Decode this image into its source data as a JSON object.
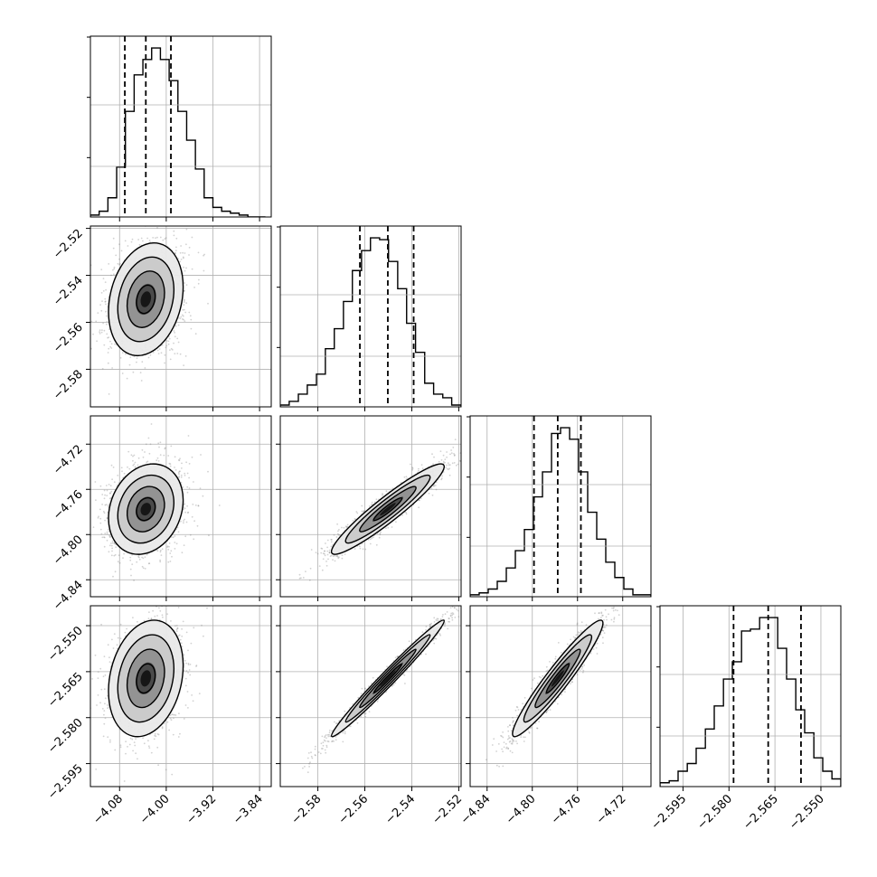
{
  "chart_data": {
    "type": "scatter",
    "variant": "corner-plot",
    "parameters": [
      "",
      "",
      "",
      ""
    ],
    "colors": {
      "line": "#000000",
      "grid": "#b0b0b0",
      "scatter": "#7f7f7f",
      "background": "#ffffff"
    },
    "grid": true,
    "quantile_lines": "dashed",
    "ranges": [
      [
        -4.13,
        -3.82
      ],
      [
        -2.596,
        -2.519
      ],
      [
        -4.855,
        -4.695
      ],
      [
        -2.6025,
        -2.5435
      ]
    ],
    "ticks": [
      {
        "values": [
          -4.08,
          -4.0,
          -3.92,
          -3.84
        ],
        "labels": [
          "−4.08",
          "−4.00",
          "−3.92",
          "−3.84"
        ]
      },
      {
        "values": [
          -2.58,
          -2.56,
          -2.54,
          -2.52
        ],
        "labels": [
          "−2.58",
          "−2.56",
          "−2.54",
          "−2.52"
        ]
      },
      {
        "values": [
          -4.84,
          -4.8,
          -4.76,
          -4.72
        ],
        "labels": [
          "−4.84",
          "−4.80",
          "−4.76",
          "−4.72"
        ]
      },
      {
        "values": [
          -2.595,
          -2.58,
          -2.565,
          -2.55
        ],
        "labels": [
          "−2.595",
          "−2.580",
          "−2.565",
          "−2.550"
        ]
      }
    ],
    "quantiles": [
      [
        -4.071,
        -4.035,
        -3.992
      ],
      [
        -2.5621,
        -2.5502,
        -2.5392
      ],
      [
        -4.7985,
        -4.7775,
        -4.757
      ],
      [
        -2.5785,
        -2.5672,
        -2.5565
      ]
    ],
    "histograms": [
      {
        "edges": [
          -4.13,
          -4.115,
          -4.1,
          -4.085,
          -4.07,
          -4.055,
          -4.04,
          -4.025,
          -4.01,
          -3.995,
          -3.98,
          -3.965,
          -3.95,
          -3.935,
          -3.92,
          -3.905,
          -3.89,
          -3.875,
          -3.86,
          -3.845,
          -3.83
        ],
        "counts": [
          1,
          3,
          10,
          26,
          55,
          74,
          82,
          88,
          82,
          71,
          55,
          40,
          25,
          10,
          5,
          3,
          2,
          1,
          0,
          0
        ]
      },
      {
        "edges": [
          -2.596,
          -2.5922,
          -2.5883,
          -2.5845,
          -2.5806,
          -2.5768,
          -2.573,
          -2.5691,
          -2.5653,
          -2.5614,
          -2.5576,
          -2.5537,
          -2.5499,
          -2.546,
          -2.5422,
          -2.5384,
          -2.5345,
          -2.5307,
          -2.5268,
          -2.523,
          -2.519
        ],
        "counts": [
          1,
          3,
          7,
          12,
          18,
          32,
          43,
          58,
          75,
          86,
          93,
          92,
          80,
          65,
          46,
          30,
          13,
          7,
          5,
          1
        ]
      },
      {
        "edges": [
          -4.855,
          -4.847,
          -4.839,
          -4.831,
          -4.823,
          -4.815,
          -4.807,
          -4.799,
          -4.791,
          -4.783,
          -4.775,
          -4.767,
          -4.759,
          -4.751,
          -4.743,
          -4.735,
          -4.727,
          -4.719,
          -4.711,
          -4.703,
          -4.695
        ],
        "counts": [
          1,
          2,
          4,
          8,
          15,
          24,
          35,
          52,
          65,
          85,
          88,
          82,
          65,
          44,
          30,
          18,
          10,
          4,
          1,
          1
        ]
      },
      {
        "edges": [
          -2.6025,
          -2.5995,
          -2.5966,
          -2.5936,
          -2.5907,
          -2.5877,
          -2.5848,
          -2.5818,
          -2.5789,
          -2.5759,
          -2.573,
          -2.57,
          -2.5671,
          -2.5641,
          -2.5612,
          -2.5582,
          -2.5553,
          -2.5523,
          -2.5494,
          -2.5464,
          -2.5435
        ],
        "counts": [
          2,
          3,
          8,
          12,
          20,
          30,
          42,
          56,
          65,
          81,
          82,
          88,
          88,
          72,
          56,
          40,
          28,
          15,
          8,
          4
        ]
      }
    ],
    "pairs": [
      {
        "row": 1,
        "col": 0,
        "mean": [
          -4.035,
          -2.5502
        ],
        "sd": [
          0.032,
          0.012
        ],
        "rho": 0.22
      },
      {
        "row": 2,
        "col": 0,
        "mean": [
          -4.035,
          -4.7775
        ],
        "sd": [
          0.032,
          0.02
        ],
        "rho": 0.2
      },
      {
        "row": 2,
        "col": 1,
        "mean": [
          -2.5502,
          -4.7775
        ],
        "sd": [
          0.012,
          0.02
        ],
        "rho": 0.94
      },
      {
        "row": 3,
        "col": 0,
        "mean": [
          -4.035,
          -2.5672
        ],
        "sd": [
          0.032,
          0.0095
        ],
        "rho": 0.22
      },
      {
        "row": 3,
        "col": 1,
        "mean": [
          -2.5502,
          -2.5672
        ],
        "sd": [
          0.012,
          0.0095
        ],
        "rho": 0.985
      },
      {
        "row": 3,
        "col": 2,
        "mean": [
          -4.7775,
          -2.5672
        ],
        "sd": [
          0.02,
          0.0095
        ],
        "rho": 0.95
      }
    ],
    "contour_levels": [
      0.5,
      1.0,
      1.5,
      2.0
    ]
  }
}
